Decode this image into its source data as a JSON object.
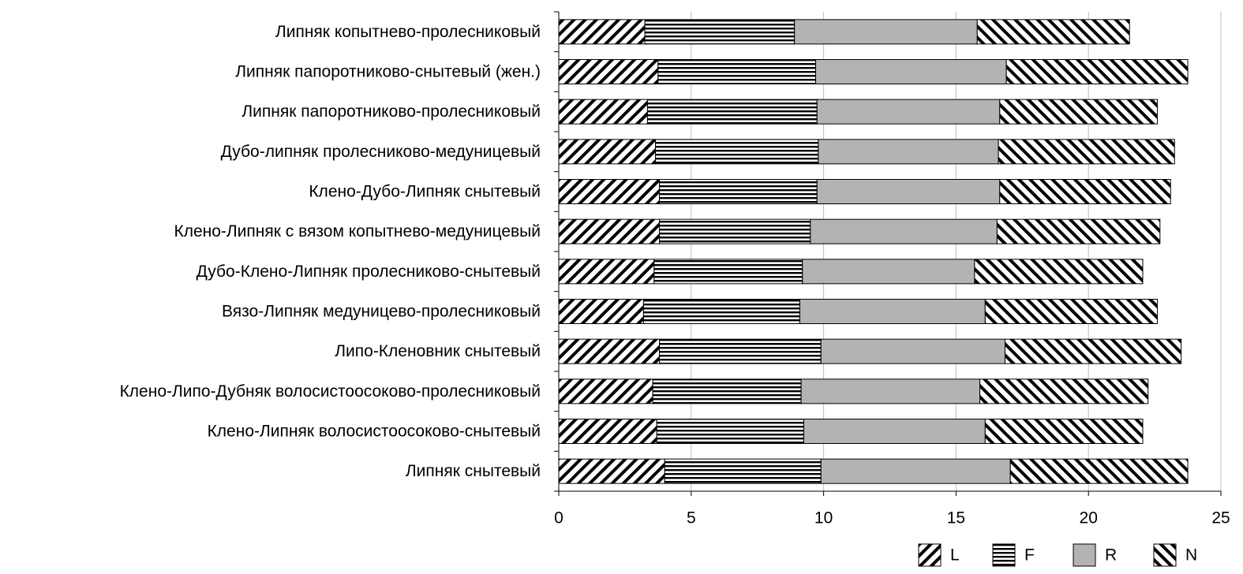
{
  "chart_data": {
    "type": "bar",
    "orientation": "horizontal",
    "stacked": true,
    "title": "",
    "xlabel": "",
    "ylabel": "",
    "xlim": [
      0,
      25
    ],
    "xticks": [
      0,
      5,
      10,
      15,
      20,
      25
    ],
    "grid": "vertical",
    "legend_position": "bottom-right",
    "categories": [
      "Липняк копытнево-пролесниковый",
      "Липняк папоротниково-снытевый (жен.)",
      "Липняк папоротниково-пролесниковый",
      "Дубо-липняк пролесниково-медуницевый",
      "Клено-Дубо-Липняк снытевый",
      "Клено-Липняк с вязом копытнево-медуницевый",
      "Дубо-Клено-Липняк пролесниково-снытевый",
      "Вязо-Липняк медуницево-пролесниковый",
      "Липо-Кленовник снытевый",
      "Клено-Липо-Дубняк волосистоосоково-пролесниковый",
      "Клено-Липняк волосистоосоково-снытевый",
      "Липняк снытевый"
    ],
    "series": [
      {
        "name": "L",
        "pattern": "diagonal-forward",
        "values": [
          3.25,
          3.75,
          3.35,
          3.65,
          3.8,
          3.8,
          3.6,
          3.2,
          3.8,
          3.55,
          3.7,
          4.0
        ]
      },
      {
        "name": "F",
        "pattern": "horizontal",
        "values": [
          5.65,
          5.95,
          6.4,
          6.15,
          5.95,
          5.7,
          5.6,
          5.9,
          6.1,
          5.6,
          5.55,
          5.9
        ]
      },
      {
        "name": "R",
        "pattern": "solid-gray",
        "color": "#b3b3b3",
        "values": [
          6.9,
          7.2,
          6.9,
          6.8,
          6.9,
          7.05,
          6.5,
          7.0,
          6.95,
          6.75,
          6.85,
          7.15
        ]
      },
      {
        "name": "N",
        "pattern": "diagonal-backward",
        "values": [
          5.75,
          6.85,
          5.95,
          6.65,
          6.45,
          6.15,
          6.35,
          6.5,
          6.65,
          6.35,
          5.95,
          6.7
        ]
      }
    ],
    "colors": {
      "bar_stroke": "#000000",
      "solid_fill": "#b3b3b3",
      "grid": "#bdbdbd",
      "axis": "#000000"
    }
  }
}
